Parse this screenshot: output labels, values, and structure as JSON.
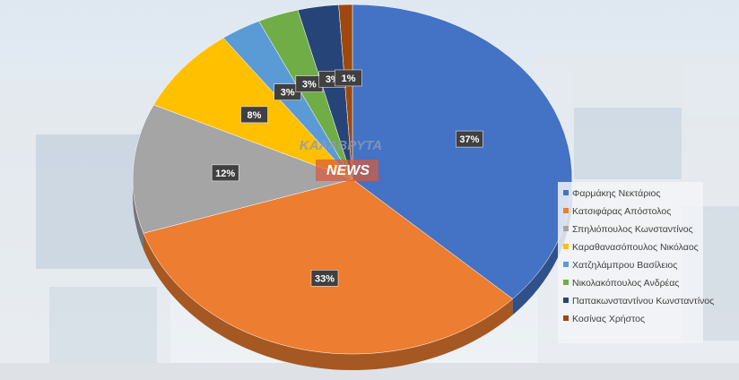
{
  "chart_data": {
    "type": "pie",
    "categories": [
      "Φαρμάκης Νεκτάριος",
      "Κατσιφάρας Απόστολος",
      "Σπηλιόπουλος Κωνσταντίνος",
      "Καραθανασόπουλος Νικόλαος",
      "Χατζηλάμπρου Βασίλειος",
      "Νικολακόπουλος Ανδρέας",
      "Παπακωνσταντίνου Κωνσταντίνος",
      "Κοσίνας Χρήστος"
    ],
    "values": [
      37,
      33,
      12,
      8,
      3,
      3,
      3,
      1
    ],
    "value_labels": [
      "37%",
      "33%",
      "12%",
      "8%",
      "3%",
      "3%",
      "3%",
      "1%"
    ],
    "colors": [
      "#4472c4",
      "#ed7d31",
      "#a5a5a5",
      "#ffc000",
      "#5b9bd5",
      "#70ad47",
      "#264478",
      "#9e480e"
    ],
    "legend": "right",
    "watermark": [
      "ΚΑΛΑΒΡΥΤΑ",
      "NEWS"
    ]
  }
}
